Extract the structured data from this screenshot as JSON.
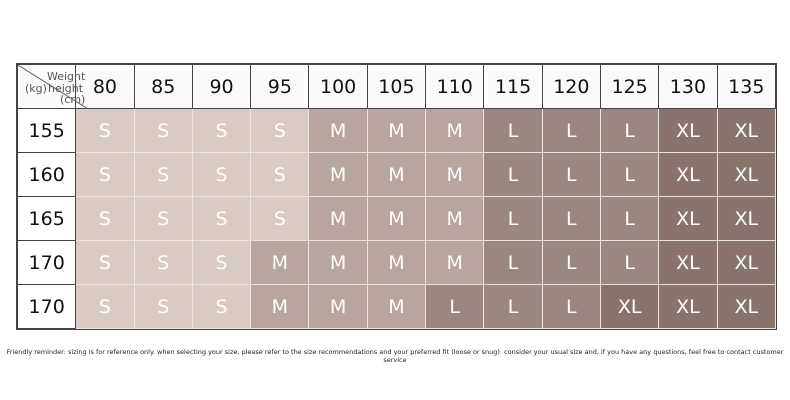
{
  "corner": {
    "weight": "Weight",
    "weight_unit": "(kg)",
    "height": "height",
    "height_unit": "(cm)"
  },
  "weights": [
    "80",
    "85",
    "90",
    "95",
    "100",
    "105",
    "110",
    "115",
    "120",
    "125",
    "130",
    "135"
  ],
  "rows": [
    {
      "height": "155",
      "sizes": [
        "S",
        "S",
        "S",
        "S",
        "M",
        "M",
        "M",
        "L",
        "L",
        "L",
        "XL",
        "XL"
      ]
    },
    {
      "height": "160",
      "sizes": [
        "S",
        "S",
        "S",
        "S",
        "M",
        "M",
        "M",
        "L",
        "L",
        "L",
        "XL",
        "XL"
      ]
    },
    {
      "height": "165",
      "sizes": [
        "S",
        "S",
        "S",
        "S",
        "M",
        "M",
        "M",
        "L",
        "L",
        "L",
        "XL",
        "XL"
      ]
    },
    {
      "height": "170",
      "sizes": [
        "S",
        "S",
        "S",
        "M",
        "M",
        "M",
        "M",
        "L",
        "L",
        "L",
        "XL",
        "XL"
      ]
    },
    {
      "height": "170",
      "sizes": [
        "S",
        "S",
        "S",
        "M",
        "M",
        "M",
        "L",
        "L",
        "L",
        "XL",
        "XL",
        "XL"
      ]
    }
  ],
  "note": "Friendly reminder: sizing is for reference only. when selecting your size, please refer to the size recommendations and your preferred fit (loose or snug). consider your usual size and, if you have any questions, feel free to contact customer service"
}
